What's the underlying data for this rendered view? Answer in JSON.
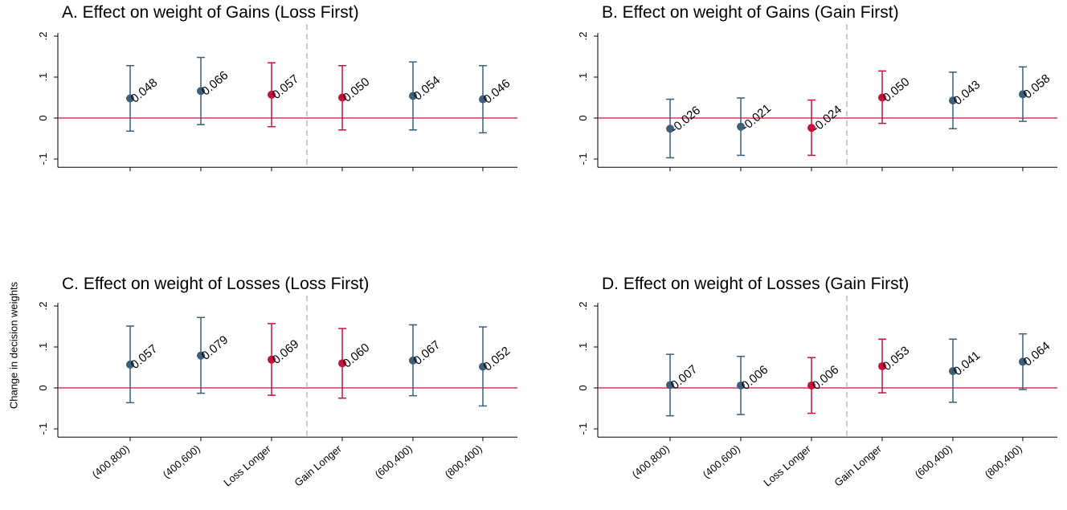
{
  "figure": {
    "ylabel": "Change in decision weights",
    "categories": [
      "(400,800)",
      "(400,600)",
      "Loss Longer",
      "Gain Longer",
      "(600,400)",
      "(800,400)"
    ],
    "yticks": [
      "-.1",
      "0",
      ".1",
      ".2"
    ],
    "colors": {
      "normal": "#3d5f78",
      "highlight": "#c8103e",
      "zero_line": "#c8103e",
      "divider": "#aaaaaa",
      "axis": "#000000",
      "text": "#000000"
    }
  },
  "chart_data": [
    {
      "type": "scatter",
      "title": "A. Effect on weight of Gains (Loss First)",
      "categories": [
        "(400,800)",
        "(400,600)",
        "Loss Longer",
        "Gain Longer",
        "(600,400)",
        "(800,400)"
      ],
      "values": [
        0.048,
        0.066,
        0.057,
        0.05,
        0.054,
        0.046
      ],
      "labels": [
        "0.048",
        "0.066",
        "0.057",
        "0.050",
        "0.054",
        "0.046"
      ],
      "ci_low": [
        -0.032,
        -0.016,
        -0.021,
        -0.029,
        -0.029,
        -0.036
      ],
      "ci_high": [
        0.128,
        0.148,
        0.135,
        0.128,
        0.137,
        0.128
      ],
      "highlight": [
        false,
        false,
        true,
        true,
        false,
        false
      ],
      "ylim": [
        -0.12,
        0.2
      ],
      "reference_line": 0,
      "divider_after_index": 2,
      "show_x_tick_labels": false
    },
    {
      "type": "scatter",
      "title": "B. Effect on weight of Gains (Gain First)",
      "categories": [
        "(400,800)",
        "(400,600)",
        "Loss Longer",
        "Gain Longer",
        "(600,400)",
        "(800,400)"
      ],
      "values": [
        -0.026,
        -0.021,
        -0.024,
        0.05,
        0.043,
        0.058
      ],
      "labels": [
        "-0.026",
        "-0.021",
        "-0.024",
        "0.050",
        "0.043",
        "0.058"
      ],
      "ci_low": [
        -0.097,
        -0.091,
        -0.091,
        -0.013,
        -0.026,
        -0.008
      ],
      "ci_high": [
        0.046,
        0.049,
        0.044,
        0.115,
        0.112,
        0.125
      ],
      "highlight": [
        false,
        false,
        true,
        true,
        false,
        false
      ],
      "ylim": [
        -0.12,
        0.2
      ],
      "reference_line": 0,
      "divider_after_index": 2,
      "show_x_tick_labels": false
    },
    {
      "type": "scatter",
      "title": "C. Effect on weight of Losses (Loss First)",
      "categories": [
        "(400,800)",
        "(400,600)",
        "Loss Longer",
        "Gain Longer",
        "(600,400)",
        "(800,400)"
      ],
      "values": [
        0.057,
        0.079,
        0.069,
        0.06,
        0.067,
        0.052
      ],
      "labels": [
        "0.057",
        "0.079",
        "0.069",
        "0.060",
        "0.067",
        "0.052"
      ],
      "ci_low": [
        -0.036,
        -0.013,
        -0.018,
        -0.025,
        -0.019,
        -0.044
      ],
      "ci_high": [
        0.151,
        0.172,
        0.157,
        0.145,
        0.154,
        0.149
      ],
      "highlight": [
        false,
        false,
        true,
        true,
        false,
        false
      ],
      "ylim": [
        -0.12,
        0.2
      ],
      "reference_line": 0,
      "divider_after_index": 2,
      "show_x_tick_labels": true
    },
    {
      "type": "scatter",
      "title": "D. Effect on weight of Losses (Gain First)",
      "categories": [
        "(400,800)",
        "(400,600)",
        "Loss Longer",
        "Gain Longer",
        "(600,400)",
        "(800,400)"
      ],
      "values": [
        0.007,
        0.006,
        0.006,
        0.053,
        0.041,
        0.064
      ],
      "labels": [
        "0.007",
        "0.006",
        "0.006",
        "0.053",
        "0.041",
        "0.064"
      ],
      "ci_low": [
        -0.068,
        -0.065,
        -0.062,
        -0.012,
        -0.035,
        -0.004
      ],
      "ci_high": [
        0.082,
        0.077,
        0.074,
        0.119,
        0.119,
        0.132
      ],
      "highlight": [
        false,
        false,
        true,
        true,
        false,
        false
      ],
      "ylim": [
        -0.12,
        0.2
      ],
      "reference_line": 0,
      "divider_after_index": 2,
      "show_x_tick_labels": true
    }
  ]
}
